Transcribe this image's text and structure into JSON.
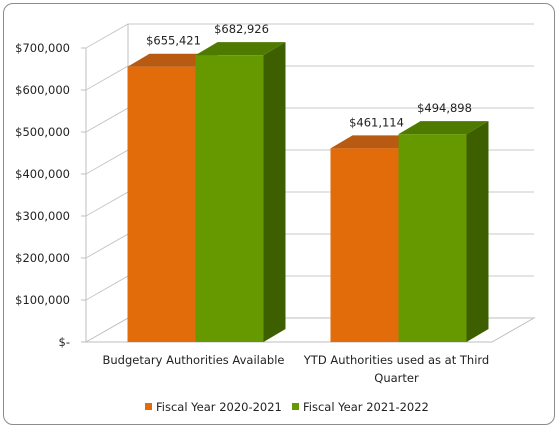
{
  "chart_data": {
    "type": "bar",
    "style": "3d-clustered-column",
    "categories": [
      [
        "Budgetary Authorities Available"
      ],
      [
        "YTD Authorities used as at Third",
        "Quarter"
      ]
    ],
    "series": [
      {
        "name": "Fiscal Year 2020-2021",
        "values": [
          655421,
          461114
        ],
        "labels": [
          "$655,421",
          "$461,114"
        ],
        "color": "#e36c0a",
        "top_color": "#b85a12",
        "side_color": "#a84f0a"
      },
      {
        "name": "Fiscal Year 2021-2022",
        "values": [
          682926,
          494898
        ],
        "labels": [
          "$682,926",
          "$494,898"
        ],
        "color": "#669900",
        "top_color": "#4f7a00",
        "side_color": "#3d5f00"
      }
    ],
    "y_ticks": [
      0,
      100000,
      200000,
      300000,
      400000,
      500000,
      600000,
      700000
    ],
    "y_tick_labels": [
      "$-",
      "$100,000",
      "$200,000",
      "$300,000",
      "$400,000",
      "$500,000",
      "$600,000",
      "$700,000"
    ],
    "ylim": [
      0,
      700000
    ],
    "grid": true,
    "legend_position": "bottom"
  }
}
